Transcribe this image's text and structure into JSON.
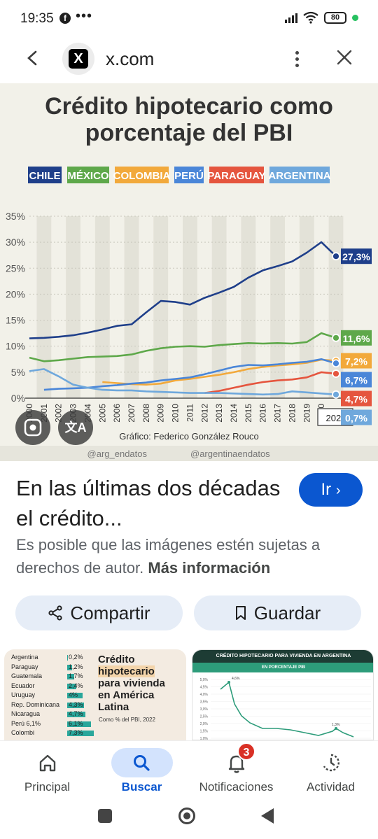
{
  "status_bar": {
    "time": "19:35",
    "battery": "80"
  },
  "browser": {
    "domain": "x.com",
    "site_letter": "X"
  },
  "chart_data": {
    "type": "line",
    "title": "Crédito hipotecario como porcentaje del PBI",
    "legend": [
      "CHILE",
      "MÉXICO",
      "COLOMBIA",
      "PERÚ",
      "PARAGUAY",
      "ARGENTINA"
    ],
    "colors": {
      "CHILE": "#1f3f8a",
      "MÉXICO": "#5ea84a",
      "COLOMBIA": "#f2a93b",
      "PERÚ": "#4a86d8",
      "PARAGUAY": "#e5553e",
      "ARGENTINA": "#6fa8dc"
    },
    "y_ticks": [
      "35%",
      "30%",
      "25%",
      "20%",
      "15%",
      "10%",
      "5%",
      "0%"
    ],
    "ylim": [
      0,
      35
    ],
    "x_ticks": [
      "2000",
      "2001",
      "2002",
      "2003",
      "2004",
      "2005",
      "2006",
      "2007",
      "2008",
      "2009",
      "2010",
      "2011",
      "2012",
      "2013",
      "2014",
      "2015",
      "2016",
      "2017",
      "2018",
      "2019",
      "2020",
      "2021"
    ],
    "x": [
      2000,
      2001,
      2002,
      2003,
      2004,
      2005,
      2006,
      2007,
      2008,
      2009,
      2010,
      2011,
      2012,
      2013,
      2014,
      2015,
      2016,
      2017,
      2018,
      2019,
      2020,
      2021
    ],
    "series": [
      {
        "name": "CHILE",
        "values": [
          11.5,
          11.6,
          11.8,
          12.1,
          12.6,
          13.2,
          13.9,
          14.2,
          16.5,
          18.7,
          18.5,
          18.0,
          19.3,
          20.3,
          21.4,
          23.2,
          24.6,
          25.4,
          26.3,
          28.0,
          30.0,
          27.3
        ]
      },
      {
        "name": "MÉXICO",
        "values": [
          7.8,
          7.1,
          7.3,
          7.6,
          7.9,
          8.0,
          8.1,
          8.4,
          9.1,
          9.6,
          9.9,
          10.0,
          9.9,
          10.2,
          10.4,
          10.6,
          10.5,
          10.6,
          10.5,
          10.8,
          12.5,
          11.6
        ]
      },
      {
        "name": "COLOMBIA",
        "values": [
          null,
          null,
          null,
          null,
          null,
          3.1,
          2.9,
          2.7,
          2.6,
          2.8,
          3.4,
          3.7,
          4.1,
          4.5,
          5.0,
          5.6,
          6.0,
          6.3,
          6.5,
          6.8,
          7.4,
          7.2
        ]
      },
      {
        "name": "PERÚ",
        "values": [
          null,
          1.6,
          1.8,
          1.9,
          2.0,
          2.3,
          2.5,
          2.8,
          3.0,
          3.4,
          3.7,
          4.0,
          4.6,
          5.3,
          6.0,
          6.4,
          6.3,
          6.5,
          6.8,
          7.0,
          7.5,
          6.7
        ]
      },
      {
        "name": "PARAGUAY",
        "values": [
          null,
          null,
          null,
          null,
          null,
          null,
          null,
          null,
          null,
          null,
          null,
          null,
          1.0,
          1.4,
          2.0,
          2.6,
          3.1,
          3.4,
          3.6,
          4.0,
          5.0,
          4.7
        ]
      },
      {
        "name": "ARGENTINA",
        "values": [
          5.2,
          5.6,
          4.2,
          2.6,
          2.0,
          1.6,
          1.5,
          1.5,
          1.3,
          1.2,
          1.1,
          1.0,
          1.0,
          1.0,
          0.9,
          0.8,
          0.7,
          0.8,
          1.3,
          1.1,
          0.9,
          0.7
        ]
      }
    ],
    "end_labels": [
      {
        "text": "27,3%",
        "series": "CHILE",
        "value": 27.3
      },
      {
        "text": "11,6%",
        "series": "MÉXICO",
        "value": 11.6
      },
      {
        "text": "7,2%",
        "series": "COLOMBIA",
        "value": 7.2
      },
      {
        "text": "6,7%",
        "series": "PERÚ",
        "value": 6.7
      },
      {
        "text": "4,7%",
        "series": "PARAGUAY",
        "value": 4.7
      },
      {
        "text": "0,7%",
        "series": "ARGENTINA",
        "value": 0.7
      }
    ],
    "credit": "Gráfico: Federico González Rouco",
    "handles": [
      "@arg_endatos",
      "@argentinaendatos"
    ]
  },
  "result": {
    "title": "En las últimas dos décadas el crédito...",
    "go_label": "Ir",
    "notice": "Es posible que las imágenes estén sujetas a derechos de autor.",
    "notice_link": "Más información"
  },
  "actions": {
    "share": "Compartir",
    "save": "Guardar"
  },
  "related": {
    "thumb1": {
      "title_line1": "Crédito",
      "title_line2": "hipotecario",
      "title_line3": "para vivienda",
      "title_line4": "en América",
      "title_line5": "Latina",
      "subtitle": "Como % del PBI, 2022",
      "rows": [
        {
          "country": "Argentina",
          "value": "0,2%",
          "frac": 0.02
        },
        {
          "country": "Paraguay",
          "value": "1,2%",
          "frac": 0.15
        },
        {
          "country": "Guatemala",
          "value": "1,7%",
          "frac": 0.2
        },
        {
          "country": "Ecuador",
          "value": "2,4%",
          "frac": 0.28
        },
        {
          "country": "Uruguay",
          "value": "4%",
          "frac": 0.45
        },
        {
          "country": "Rep. Dominicana",
          "value": "4,3%",
          "frac": 0.5
        },
        {
          "country": "Nicaragua",
          "value": "4,7%",
          "frac": 0.55
        },
        {
          "country": "Perú 6,1%",
          "value": "6,1%",
          "frac": 0.7
        },
        {
          "country": "Colombi",
          "value": "7,3%",
          "frac": 0.8
        }
      ]
    },
    "thumb2": {
      "header": "CRÉDITO HIPOTECARIO PARA VIVIENDA EN ARGENTINA",
      "subheader": "EN PORCENTAJE PIB",
      "y_ticks": [
        "5,0%",
        "4,5%",
        "4,0%",
        "3,5%",
        "3,0%",
        "2,5%",
        "2,0%",
        "1,5%",
        "1,0%"
      ],
      "peak_label": "4,6%",
      "later_label": "1,3%"
    }
  },
  "bottom_nav": [
    {
      "label": "Principal",
      "icon": "home-icon"
    },
    {
      "label": "Buscar",
      "icon": "search-icon",
      "active": true
    },
    {
      "label": "Notificaciones",
      "icon": "bell-icon",
      "badge": "3"
    },
    {
      "label": "Actividad",
      "icon": "history-icon"
    }
  ]
}
